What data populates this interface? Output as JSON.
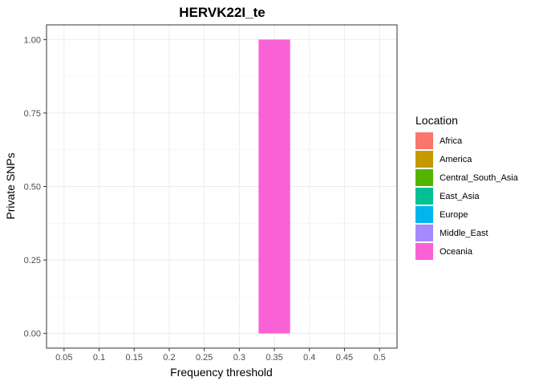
{
  "chart_data": {
    "type": "bar",
    "title": "HERVK22I_te",
    "xlabel": "Frequency threshold",
    "ylabel": "Private SNPs",
    "categories": [
      "0.05",
      "0.1",
      "0.15",
      "0.2",
      "0.25",
      "0.3",
      "0.35",
      "0.4",
      "0.45",
      "0.5"
    ],
    "x_values": [
      0.05,
      0.1,
      0.15,
      0.2,
      0.25,
      0.3,
      0.35,
      0.4,
      0.45,
      0.5
    ],
    "xlim": [
      0.025,
      0.525
    ],
    "ylim": [
      -0.05,
      1.05
    ],
    "yticks": [
      0.0,
      0.25,
      0.5,
      0.75,
      1.0
    ],
    "ytick_labels": [
      "0.00",
      "0.25",
      "0.50",
      "0.75",
      "1.00"
    ],
    "bar_width": 0.045,
    "grid": true,
    "legend": {
      "title": "Location",
      "placement": "right",
      "entries": [
        {
          "name": "Africa",
          "color": "#F8766D"
        },
        {
          "name": "America",
          "color": "#C49A00"
        },
        {
          "name": "Central_South_Asia",
          "color": "#53B400"
        },
        {
          "name": "East_Asia",
          "color": "#00C094"
        },
        {
          "name": "Europe",
          "color": "#00B6EB"
        },
        {
          "name": "Middle_East",
          "color": "#A58AFF"
        },
        {
          "name": "Oceania",
          "color": "#FB61D7"
        }
      ]
    },
    "bars": [
      {
        "x": 0.35,
        "series": "Oceania",
        "value": 1.0
      }
    ]
  }
}
